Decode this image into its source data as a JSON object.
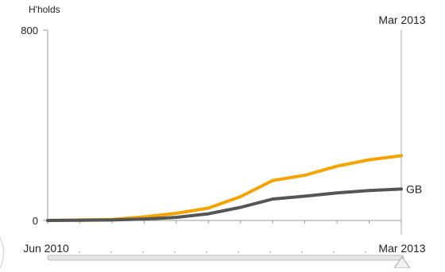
{
  "chart_data": {
    "type": "line",
    "ylabel": "H'holds",
    "yticks": [
      {
        "value": 0,
        "label": "0"
      },
      {
        "value": 800,
        "label": "800"
      }
    ],
    "ylim": [
      0,
      800
    ],
    "x_start_label": "Jun 2010",
    "x_end_label": "Mar 2013",
    "cursor_label": "Mar 2013",
    "x_range": [
      "2010-06",
      "2013-03"
    ],
    "x": [
      "2010-06",
      "2010-09",
      "2010-12",
      "2011-03",
      "2011-06",
      "2011-09",
      "2011-12",
      "2012-03",
      "2012-06",
      "2012-09",
      "2012-12",
      "2013-03"
    ],
    "series": [
      {
        "name": "",
        "color": "#f5a300",
        "values": [
          0,
          2,
          4,
          15,
          30,
          52,
          100,
          168,
          190,
          228,
          255,
          272
        ]
      },
      {
        "name": "GB",
        "color": "#555555",
        "values": [
          0,
          1,
          2,
          6,
          13,
          28,
          55,
          90,
          102,
          116,
          126,
          132
        ]
      }
    ],
    "grid": false
  },
  "colors": {
    "axis": "#999999",
    "scroll_track": "#bbbbbb"
  }
}
